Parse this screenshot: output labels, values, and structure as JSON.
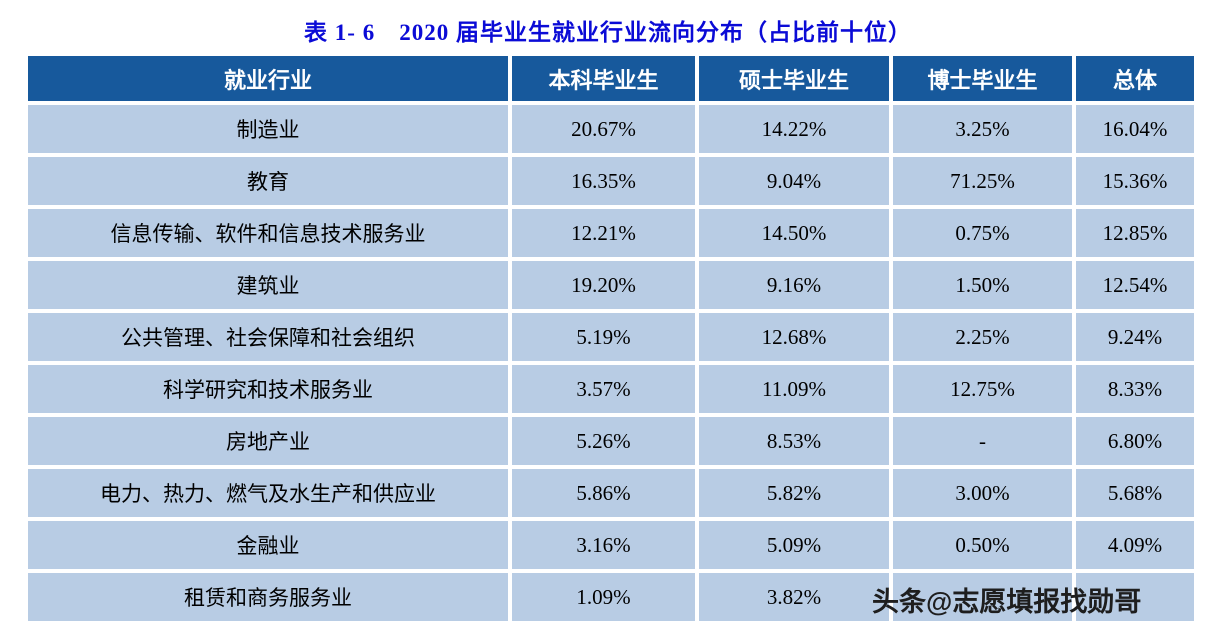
{
  "title": "表 1- 6　2020 届毕业生就业行业流向分布（占比前十位）",
  "watermark": "头条@志愿填报找勋哥",
  "colors": {
    "title_text": "#0b0bd6",
    "header_bg": "#17599c",
    "row_bg": "#b8cce4",
    "watermark_text": "#1e1e1e"
  },
  "chart_data": {
    "type": "table",
    "columns": [
      "就业行业",
      "本科毕业生",
      "硕士毕业生",
      "博士毕业生",
      "总体"
    ],
    "rows": [
      [
        "制造业",
        "20.67%",
        "14.22%",
        "3.25%",
        "16.04%"
      ],
      [
        "教育",
        "16.35%",
        "9.04%",
        "71.25%",
        "15.36%"
      ],
      [
        "信息传输、软件和信息技术服务业",
        "12.21%",
        "14.50%",
        "0.75%",
        "12.85%"
      ],
      [
        "建筑业",
        "19.20%",
        "9.16%",
        "1.50%",
        "12.54%"
      ],
      [
        "公共管理、社会保障和社会组织",
        "5.19%",
        "12.68%",
        "2.25%",
        "9.24%"
      ],
      [
        "科学研究和技术服务业",
        "3.57%",
        "11.09%",
        "12.75%",
        "8.33%"
      ],
      [
        "房地产业",
        "5.26%",
        "8.53%",
        "-",
        "6.80%"
      ],
      [
        "电力、热力、燃气及水生产和供应业",
        "5.86%",
        "5.82%",
        "3.00%",
        "5.68%"
      ],
      [
        "金融业",
        "3.16%",
        "5.09%",
        "0.50%",
        "4.09%"
      ],
      [
        "租赁和商务服务业",
        "1.09%",
        "3.82%",
        "",
        ""
      ]
    ]
  }
}
